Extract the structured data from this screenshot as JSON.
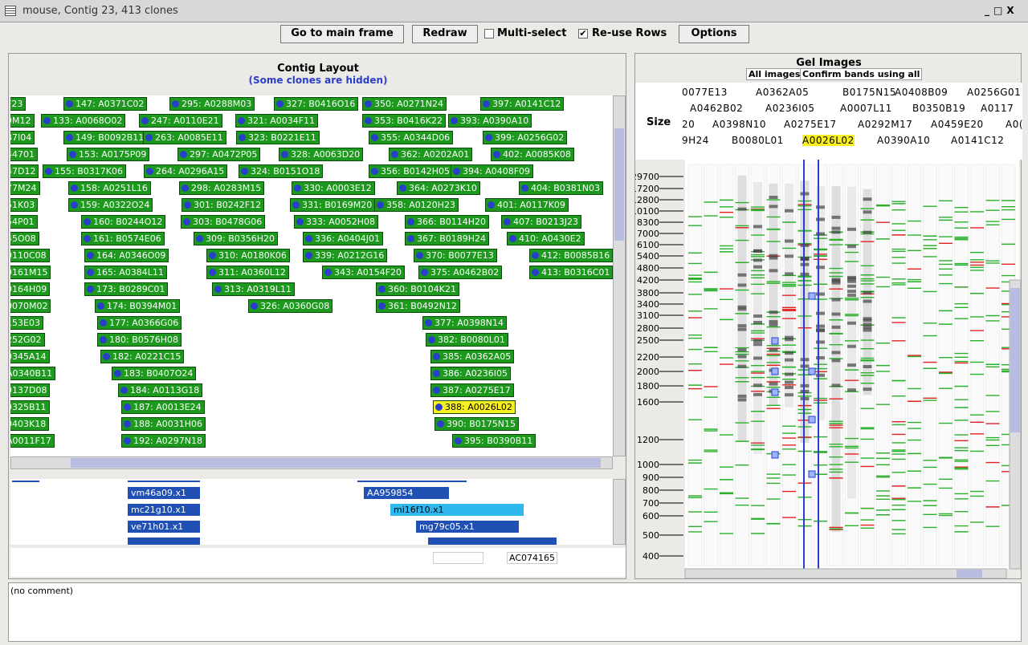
{
  "window_title": "mouse, Contig 23, 413 clones",
  "toolbar": {
    "buttons": [
      "Go to main frame",
      "Redraw",
      "Options"
    ],
    "checkboxes": [
      {
        "label": "Multi-select",
        "checked": false
      },
      {
        "label": "Re-use Rows",
        "checked": true
      }
    ]
  },
  "contig_layout": {
    "title": "Contig Layout",
    "subtitle": "(Some clones are hidden)",
    "selected": "388: A0026L02",
    "rows": [
      [
        "F23",
        "147: A0371C02",
        "295: A0288M03",
        "327: B0416O16",
        "350: A0271N24",
        "397: A0141C12"
      ],
      [
        "9M12",
        "133: A0068O02",
        "247: A0110E21",
        "321: A0034F11",
        "353: B0416K22",
        "393: A0390A10"
      ],
      [
        "87I04",
        "149: B0092B11",
        "263: A0085E11",
        "323: B0221E11",
        "355: A0344D06",
        "399: A0256G02"
      ],
      [
        "44701",
        "153: A0175P09",
        "297: A0472P05",
        "328: A0063D20",
        "362: A0202A01",
        "402: A0085K08"
      ],
      [
        "47D12",
        "155: B0317K06",
        "264: A0296A15",
        "324: B0151O18",
        "356: B0142H05",
        "394: A0408F09"
      ],
      [
        "77M24",
        "158: A0251L16",
        "298: A0283M15",
        "330: A0003E12",
        "364: A0273K10",
        "404: B0381N03"
      ],
      [
        "51K03",
        "159: A0322O24",
        "301: B0242F12",
        "331: B0169M20",
        "358: A0120H23",
        "401: A0117K09"
      ],
      [
        "54P01",
        "160: B0244O12",
        "303: B0478G06",
        "333: A0052H08",
        "366: B0114H20",
        "407: B0213J23"
      ],
      [
        "45O08",
        "161: B0574E06",
        "309: B0356H20",
        "336: A0404J01",
        "367: B0189H24",
        "410: A0430E2"
      ],
      [
        "0110C08",
        "164: A0346O09",
        "310: A0180K06",
        "339: A0212G16",
        "370: B0077E13",
        "412: B0085B16"
      ],
      [
        "0161M15",
        "165: A0384L11",
        "311: A0360L12",
        "343: A0154F20",
        "375: A0462B02",
        "413: B0316C01"
      ],
      [
        "0164H09",
        "173: B0289C01",
        "313: A0319L11",
        "360: B0104K21"
      ],
      [
        "0070M02",
        "174: B0394M01",
        "326: A0360G08",
        "361: B0492N12"
      ],
      [
        "153E03",
        "177: A0366G06",
        "377: A0398N14"
      ],
      [
        "252G02",
        "180: B0576H08",
        "382: B0080L01"
      ],
      [
        "0345A14",
        "182: A0221C15",
        "385: A0362A05"
      ],
      [
        "A0340B11",
        "183: B0407O24",
        "386: A0236I05"
      ],
      [
        "0137D08",
        "184: A0113G18",
        "387: A0275E17"
      ],
      [
        "0325B11",
        "187: A0013E24",
        "388: A0026L02"
      ],
      [
        "0403K18",
        "188: A0031H06",
        "390: B0175N15"
      ],
      [
        "A0011F17",
        "192: A0297N18",
        "395: B0390B11"
      ]
    ]
  },
  "sequence_track": {
    "items": [
      "vm46a09.x1",
      "mc21g10.x1",
      "ve71h01.x1",
      "AA959854",
      "mi16f10.x1",
      "mg79c05.x1"
    ],
    "accessions": [
      "AC074157",
      "AC074165"
    ]
  },
  "gel_images": {
    "title": "Gel Images",
    "buttons": [
      "All images",
      "Confirm bands using all"
    ],
    "size_label": "Size",
    "lane_rows": [
      [
        "0077E13",
        "A0362A05",
        "B0175N15",
        "A0408B09",
        "A0256G01"
      ],
      [
        "A0462B02",
        "A0236I05",
        "A0007L11",
        "B0350B19",
        "A0117"
      ],
      [
        "20",
        "A0398N10",
        "A0275E17",
        "A0292M17",
        "A0459E20",
        "A0("
      ],
      [
        "9H24",
        "B0080L01",
        "A0026L02",
        "A0390A10",
        "A0141C12"
      ]
    ],
    "highlighted": "A0026L02",
    "sizes": [
      29700,
      17200,
      12800,
      10100,
      8300,
      7000,
      6100,
      5400,
      4800,
      4200,
      3800,
      3400,
      3100,
      2800,
      2500,
      2200,
      2000,
      1800,
      1600,
      1200,
      1000,
      900,
      800,
      700,
      600,
      500,
      400
    ]
  },
  "comment": "(no comment)"
}
